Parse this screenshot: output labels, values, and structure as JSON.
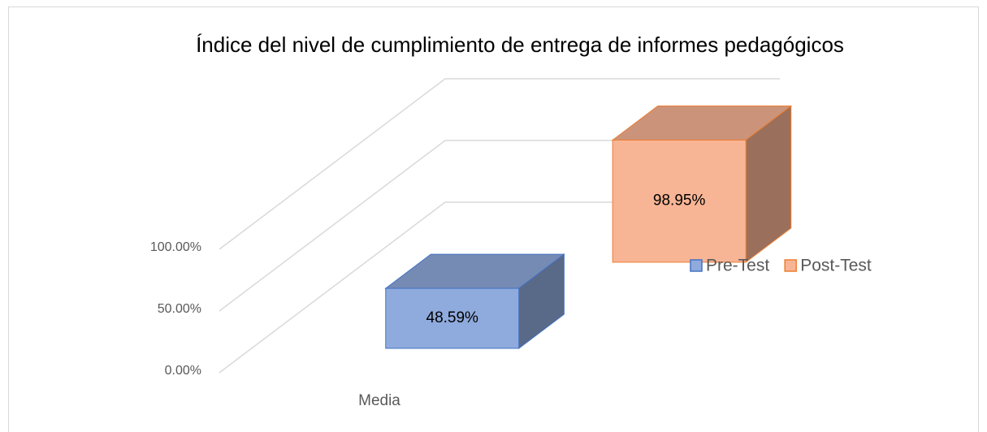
{
  "chart_data": {
    "type": "bar3d",
    "title": "Índice del nivel de cumplimiento de entrega de informes pedagógicos",
    "categories": [
      "Media"
    ],
    "series": [
      {
        "name": "Pre-Test",
        "color": "#8faadc",
        "edge": "#4472c4",
        "values": [
          48.59
        ],
        "value_labels": [
          "48.59%"
        ]
      },
      {
        "name": "Post-Test",
        "color": "#f8b595",
        "edge": "#ed7d31",
        "values": [
          98.95
        ],
        "value_labels": [
          "98.95%"
        ]
      }
    ],
    "ylim": [
      0,
      100
    ],
    "yticks": [
      {
        "value": 0,
        "label": "0.00%"
      },
      {
        "value": 50,
        "label": "50.00%"
      },
      {
        "value": 100,
        "label": "100.00%"
      }
    ],
    "grid": true,
    "legend": "right"
  }
}
